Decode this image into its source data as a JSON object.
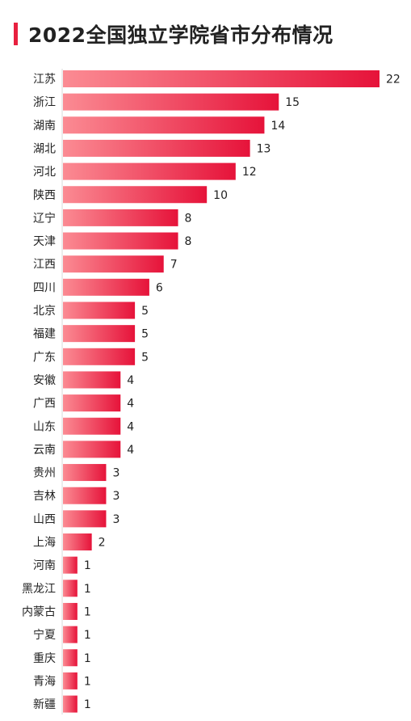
{
  "chart_data": {
    "type": "bar",
    "orientation": "horizontal",
    "title": "2022全国独立学院省市分布情况",
    "categories": [
      "江苏",
      "浙江",
      "湖南",
      "湖北",
      "河北",
      "陕西",
      "辽宁",
      "天津",
      "江西",
      "四川",
      "北京",
      "福建",
      "广东",
      "安徽",
      "广西",
      "山东",
      "云南",
      "贵州",
      "吉林",
      "山西",
      "上海",
      "河南",
      "黑龙江",
      "内蒙古",
      "宁夏",
      "重庆",
      "青海",
      "新疆"
    ],
    "values": [
      22,
      15,
      14,
      13,
      12,
      10,
      8,
      8,
      7,
      6,
      5,
      5,
      5,
      4,
      4,
      4,
      4,
      3,
      3,
      3,
      2,
      1,
      1,
      1,
      1,
      1,
      1,
      1
    ],
    "xlabel": "",
    "ylabel": "",
    "grid": false,
    "legend": "none",
    "colors": {
      "bar_start": "#fb8b93",
      "bar_end": "#e6133a",
      "accent": "#e8203f",
      "axis": "#d9d9d9",
      "text": "#222222"
    }
  }
}
